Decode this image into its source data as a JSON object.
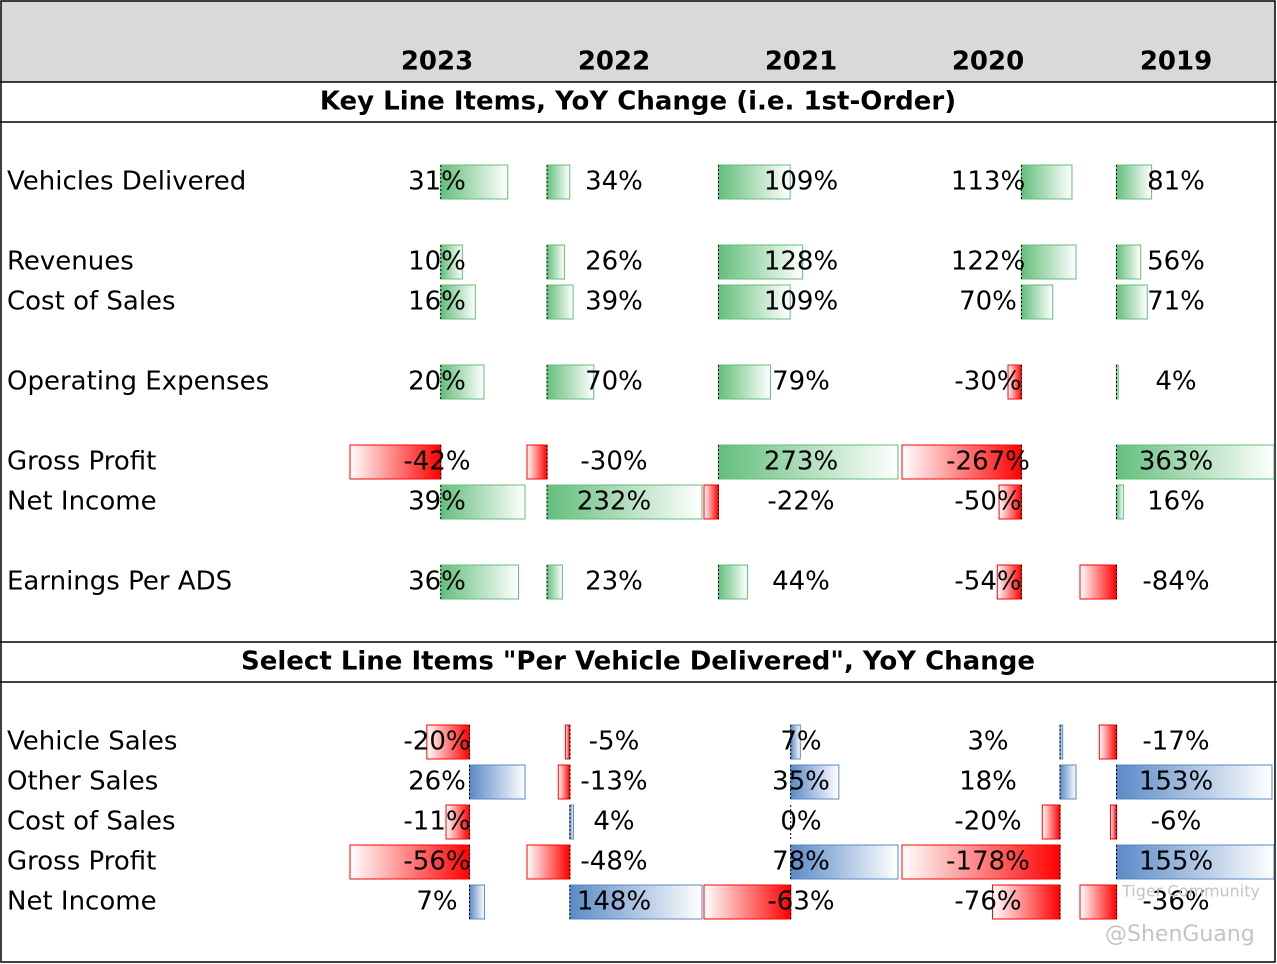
{
  "header": {
    "years": [
      "2023",
      "2022",
      "2021",
      "2020",
      "2019"
    ]
  },
  "sections": [
    {
      "title": "Key Line Items, YoY Change (i.e. 1st-Order)",
      "positive_color": "#63be7b",
      "negative_color": "#ff0000",
      "rows": [
        {
          "label": "Vehicles Delivered",
          "values": [
            {
              "value": 31,
              "label": "31%"
            },
            {
              "value": 34,
              "label": "34%"
            },
            {
              "value": 109,
              "label": "109%"
            },
            {
              "value": 113,
              "label": "113%"
            },
            {
              "value": 81,
              "label": "81%"
            }
          ]
        },
        {
          "label": "Revenues",
          "values": [
            {
              "value": 10,
              "label": "10%"
            },
            {
              "value": 26,
              "label": "26%"
            },
            {
              "value": 128,
              "label": "128%"
            },
            {
              "value": 122,
              "label": "122%"
            },
            {
              "value": 56,
              "label": "56%"
            }
          ]
        },
        {
          "label": "Cost of Sales",
          "values": [
            {
              "value": 16,
              "label": "16%"
            },
            {
              "value": 39,
              "label": "39%"
            },
            {
              "value": 109,
              "label": "109%"
            },
            {
              "value": 70,
              "label": "70%"
            },
            {
              "value": 71,
              "label": "71%"
            }
          ]
        },
        {
          "label": "Operating Expenses",
          "values": [
            {
              "value": 20,
              "label": "20%"
            },
            {
              "value": 70,
              "label": "70%"
            },
            {
              "value": 79,
              "label": "79%"
            },
            {
              "value": -30,
              "label": "-30%"
            },
            {
              "value": 4,
              "label": "4%"
            }
          ]
        },
        {
          "label": "Gross Profit",
          "values": [
            {
              "value": -42,
              "label": "-42%"
            },
            {
              "value": -30,
              "label": "-30%"
            },
            {
              "value": 273,
              "label": "273%"
            },
            {
              "value": -267,
              "label": "-267%"
            },
            {
              "value": 363,
              "label": "363%"
            }
          ]
        },
        {
          "label": "Net Income",
          "values": [
            {
              "value": 39,
              "label": "39%"
            },
            {
              "value": 232,
              "label": "232%"
            },
            {
              "value": -22,
              "label": "-22%"
            },
            {
              "value": -50,
              "label": "-50%"
            },
            {
              "value": 16,
              "label": "16%"
            }
          ]
        },
        {
          "label": "Earnings Per ADS",
          "values": [
            {
              "value": 36,
              "label": "36%"
            },
            {
              "value": 23,
              "label": "23%"
            },
            {
              "value": 44,
              "label": "44%"
            },
            {
              "value": -54,
              "label": "-54%"
            },
            {
              "value": -84,
              "label": "-84%"
            }
          ]
        }
      ]
    },
    {
      "title": "Select Line Items \"Per Vehicle Delivered\", YoY Change",
      "positive_color": "#5a8ac6",
      "negative_color": "#ff0000",
      "rows": [
        {
          "label": "Vehicle Sales",
          "values": [
            {
              "value": -20,
              "label": "-20%"
            },
            {
              "value": -5,
              "label": "-5%"
            },
            {
              "value": 7,
              "label": "7%"
            },
            {
              "value": 3,
              "label": "3%"
            },
            {
              "value": -17,
              "label": "-17%"
            }
          ]
        },
        {
          "label": "Other Sales",
          "values": [
            {
              "value": 26,
              "label": "26%"
            },
            {
              "value": -13,
              "label": "-13%"
            },
            {
              "value": 35,
              "label": "35%"
            },
            {
              "value": 18,
              "label": "18%"
            },
            {
              "value": 153,
              "label": "153%"
            }
          ]
        },
        {
          "label": "Cost of Sales",
          "values": [
            {
              "value": -11,
              "label": "-11%"
            },
            {
              "value": 4,
              "label": "4%"
            },
            {
              "value": 0,
              "label": "0%"
            },
            {
              "value": -20,
              "label": "-20%"
            },
            {
              "value": -6,
              "label": "-6%"
            }
          ]
        },
        {
          "label": "Gross Profit",
          "values": [
            {
              "value": -56,
              "label": "-56%"
            },
            {
              "value": -48,
              "label": "-48%"
            },
            {
              "value": 78,
              "label": "78%"
            },
            {
              "value": -178,
              "label": "-178%"
            },
            {
              "value": 155,
              "label": "155%"
            }
          ]
        },
        {
          "label": "Net Income",
          "values": [
            {
              "value": 7,
              "label": "7%"
            },
            {
              "value": 148,
              "label": "148%"
            },
            {
              "value": -63,
              "label": "-63%"
            },
            {
              "value": -76,
              "label": "-76%"
            },
            {
              "value": -36,
              "label": "-36%"
            }
          ]
        }
      ]
    }
  ],
  "watermark": [
    "Tiger Community",
    "@ShenGuang"
  ]
}
